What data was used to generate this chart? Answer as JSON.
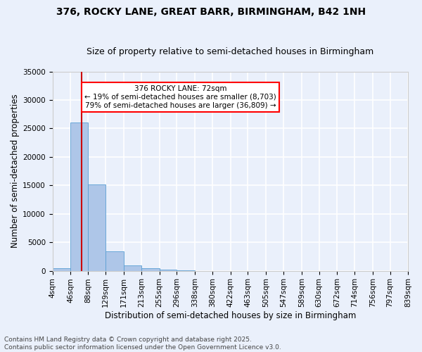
{
  "title": "376, ROCKY LANE, GREAT BARR, BIRMINGHAM, B42 1NH",
  "subtitle": "Size of property relative to semi-detached houses in Birmingham",
  "xlabel": "Distribution of semi-detached houses by size in Birmingham",
  "ylabel": "Number of semi-detached properties",
  "footnote1": "Contains HM Land Registry data © Crown copyright and database right 2025.",
  "footnote2": "Contains public sector information licensed under the Open Government Licence v3.0.",
  "annotation_title": "376 ROCKY LANE: 72sqm",
  "annotation_line1": "← 19% of semi-detached houses are smaller (8,703)",
  "annotation_line2": "79% of semi-detached houses are larger (36,809) →",
  "property_size": 72,
  "bin_edges": [
    4,
    46,
    88,
    129,
    171,
    213,
    255,
    296,
    338,
    380,
    422,
    463,
    505,
    547,
    589,
    630,
    672,
    714,
    756,
    797,
    839
  ],
  "bin_labels": [
    "4sqm",
    "46sqm",
    "88sqm",
    "129sqm",
    "171sqm",
    "213sqm",
    "255sqm",
    "296sqm",
    "338sqm",
    "380sqm",
    "422sqm",
    "463sqm",
    "505sqm",
    "547sqm",
    "589sqm",
    "630sqm",
    "672sqm",
    "714sqm",
    "756sqm",
    "797sqm",
    "839sqm"
  ],
  "bar_values": [
    400,
    26000,
    15200,
    3400,
    1000,
    450,
    200,
    50,
    0,
    0,
    0,
    0,
    0,
    0,
    0,
    0,
    0,
    0,
    0,
    0
  ],
  "bar_color": "#aec6e8",
  "bar_edge_color": "#5a9fd4",
  "vline_color": "#cc0000",
  "vline_x": 72,
  "ylim": [
    0,
    35000
  ],
  "yticks": [
    0,
    5000,
    10000,
    15000,
    20000,
    25000,
    30000,
    35000
  ],
  "background_color": "#eaf0fb",
  "plot_bg_color": "#eaf0fb",
  "grid_color": "#ffffff",
  "title_fontsize": 10,
  "subtitle_fontsize": 9,
  "axis_fontsize": 8.5,
  "tick_fontsize": 7.5,
  "footnote_fontsize": 6.5
}
